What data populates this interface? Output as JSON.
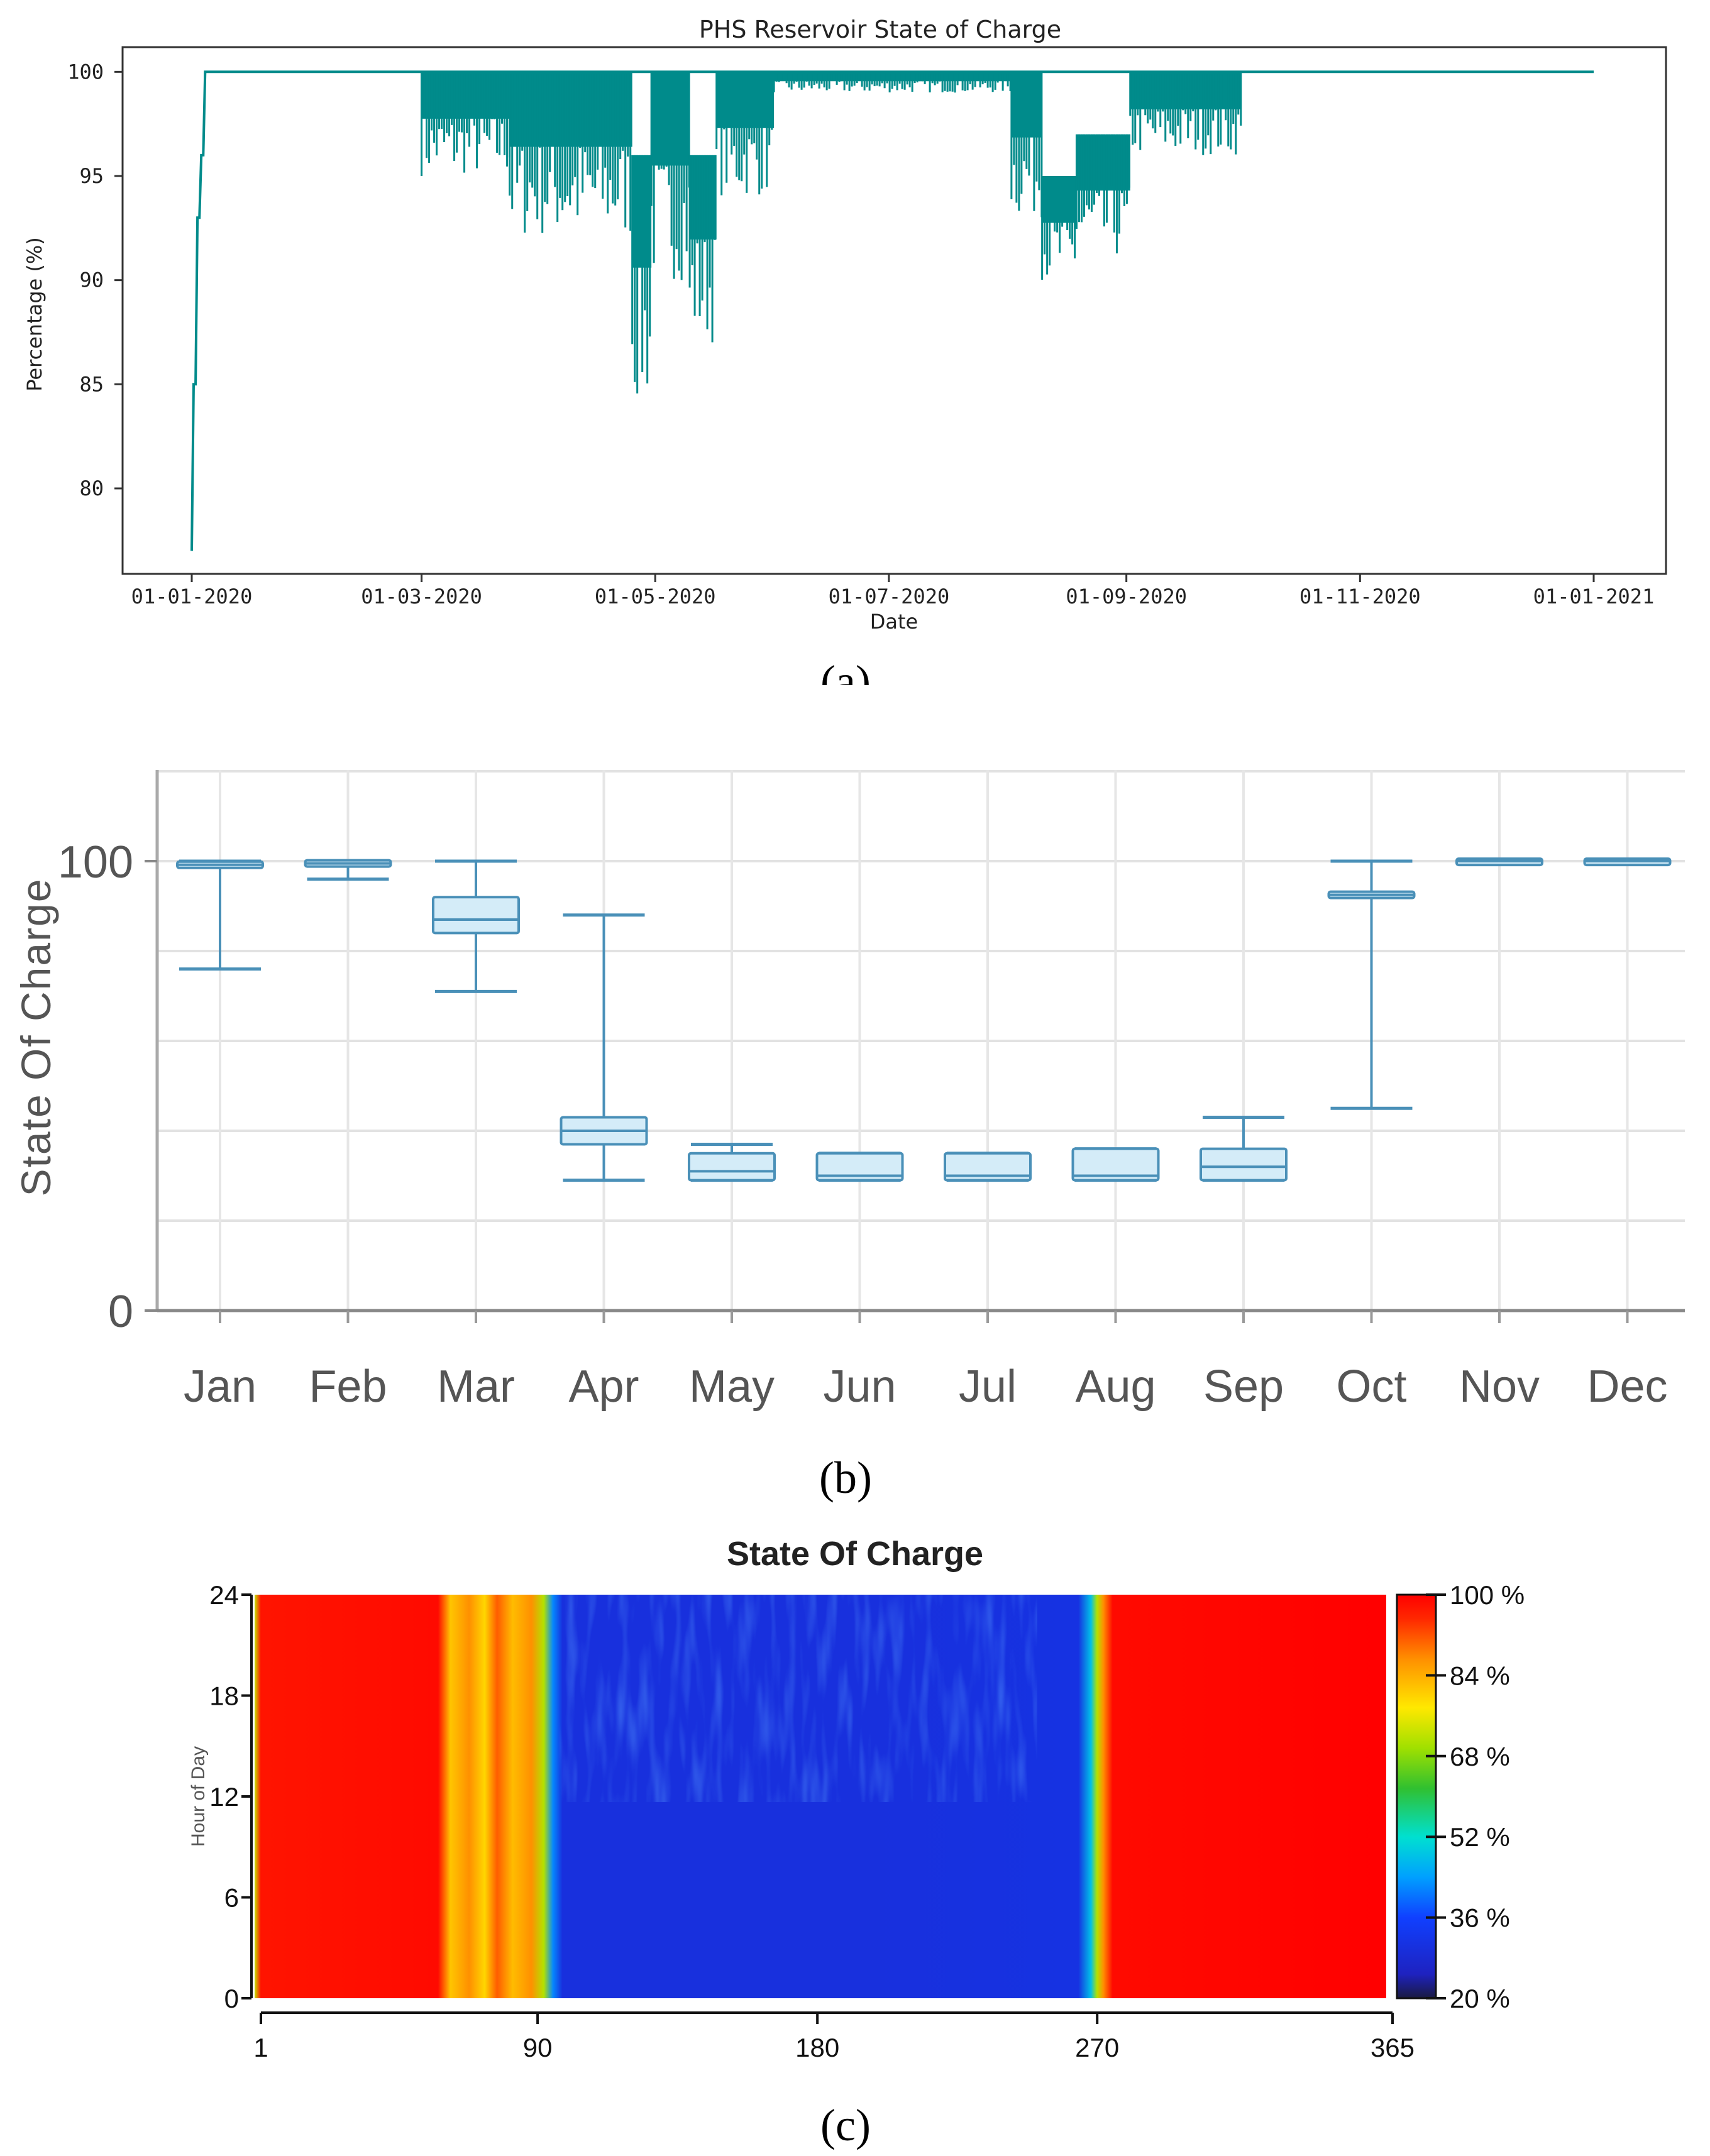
{
  "chart_data": [
    {
      "type": "line",
      "panel_label": "(a)",
      "title": "PHS Reservoir State of Charge",
      "xlabel": "Date",
      "ylabel": "Percentage (%)",
      "ylim": [
        76,
        101.2
      ],
      "yticks": [
        80,
        85,
        90,
        95,
        100
      ],
      "xticks": [
        "01-01-2020",
        "01-03-2020",
        "01-05-2020",
        "01-07-2020",
        "01-09-2020",
        "01-11-2020",
        "01-01-2021"
      ],
      "xtick_days": [
        0,
        60,
        121,
        182,
        244,
        305,
        366
      ],
      "series_color": "#008b8b",
      "series": [
        {
          "name": "State of Charge",
          "day": [
            0,
            0.5,
            1,
            1.5,
            2,
            2.5,
            3,
            3.5,
            4,
            60,
            366
          ],
          "value": [
            77,
            85,
            85,
            93,
            93,
            96,
            96,
            100,
            100,
            100,
            100
          ]
        }
      ],
      "fluctuation_bands": [
        {
          "start": 60,
          "end": 83,
          "min": 95,
          "max": 100
        },
        {
          "start": 83,
          "end": 115,
          "min": 92,
          "max": 100
        },
        {
          "start": 115,
          "end": 120,
          "min": 84,
          "max": 96
        },
        {
          "start": 120,
          "end": 130,
          "min": 90,
          "max": 100
        },
        {
          "start": 130,
          "end": 137,
          "min": 87,
          "max": 96
        },
        {
          "start": 137,
          "end": 152,
          "min": 94,
          "max": 100
        },
        {
          "start": 152,
          "end": 214,
          "min": 99,
          "max": 100
        },
        {
          "start": 214,
          "end": 222,
          "min": 93,
          "max": 100
        },
        {
          "start": 222,
          "end": 231,
          "min": 90,
          "max": 95
        },
        {
          "start": 231,
          "end": 245,
          "min": 91,
          "max": 97
        },
        {
          "start": 245,
          "end": 274,
          "min": 96,
          "max": 100
        }
      ]
    },
    {
      "type": "box",
      "panel_label": "(b)",
      "ylabel": "State Of Charge",
      "ylim": [
        0,
        120
      ],
      "yticks": [
        0,
        100
      ],
      "gridlines": [
        20,
        40,
        60,
        80,
        100,
        120
      ],
      "categories": [
        "Jan",
        "Feb",
        "Mar",
        "Apr",
        "May",
        "Jun",
        "Jul",
        "Aug",
        "Sep",
        "Oct",
        "Nov",
        "Dec"
      ],
      "boxes": [
        {
          "min": 76,
          "q1": 98.6,
          "median": 99.2,
          "q3": 99.8,
          "max": 100
        },
        {
          "min": 96,
          "q1": 99,
          "median": 99.5,
          "q3": 100,
          "max": 100
        },
        {
          "min": 71,
          "q1": 84,
          "median": 87,
          "q3": 92,
          "max": 100
        },
        {
          "min": 29,
          "q1": 37,
          "median": 40,
          "q3": 43,
          "max": 88
        },
        {
          "min": 29,
          "q1": 29,
          "median": 31,
          "q3": 35,
          "max": 37
        },
        {
          "min": 29,
          "q1": 29,
          "median": 30,
          "q3": 35,
          "max": 35
        },
        {
          "min": 29,
          "q1": 29,
          "median": 30,
          "q3": 35,
          "max": 35
        },
        {
          "min": 29,
          "q1": 29,
          "median": 30,
          "q3": 36,
          "max": 36
        },
        {
          "min": 29,
          "q1": 29,
          "median": 32,
          "q3": 36,
          "max": 43
        },
        {
          "min": 45,
          "q1": 92,
          "median": 92.5,
          "q3": 93,
          "max": 100
        },
        {
          "min": 99.5,
          "q1": 99.7,
          "median": 100,
          "q3": 100,
          "max": 100
        },
        {
          "min": 99.5,
          "q1": 99.7,
          "median": 100,
          "q3": 100,
          "max": 100
        }
      ]
    },
    {
      "type": "heatmap",
      "panel_label": "(c)",
      "title": "State Of Charge",
      "xlabel": "",
      "ylabel": "Hour of Day",
      "xlim": [
        1,
        365
      ],
      "ylim": [
        0,
        24
      ],
      "xticks": [
        "1",
        "90",
        "180",
        "270",
        "365"
      ],
      "yticks": [
        "0",
        "6",
        "12",
        "18",
        "24"
      ],
      "colorbar_ticks": [
        "20 %",
        "36 %",
        "52 %",
        "68 %",
        "84 %",
        "100 %"
      ],
      "colorbar_range": [
        20,
        100
      ],
      "day_profile": [
        {
          "day": 1,
          "value": 72
        },
        {
          "day": 3,
          "value": 98
        },
        {
          "day": 60,
          "value": 99
        },
        {
          "day": 64,
          "value": 82
        },
        {
          "day": 70,
          "value": 88
        },
        {
          "day": 75,
          "value": 80
        },
        {
          "day": 79,
          "value": 92
        },
        {
          "day": 84,
          "value": 83
        },
        {
          "day": 90,
          "value": 88
        },
        {
          "day": 94,
          "value": 70
        },
        {
          "day": 97,
          "value": 42
        },
        {
          "day": 100,
          "value": 30
        },
        {
          "day": 150,
          "value": 30
        },
        {
          "day": 200,
          "value": 30
        },
        {
          "day": 266,
          "value": 31
        },
        {
          "day": 270,
          "value": 48
        },
        {
          "day": 272,
          "value": 70
        },
        {
          "day": 274,
          "value": 88
        },
        {
          "day": 277,
          "value": 99
        },
        {
          "day": 365,
          "value": 100
        }
      ]
    }
  ]
}
